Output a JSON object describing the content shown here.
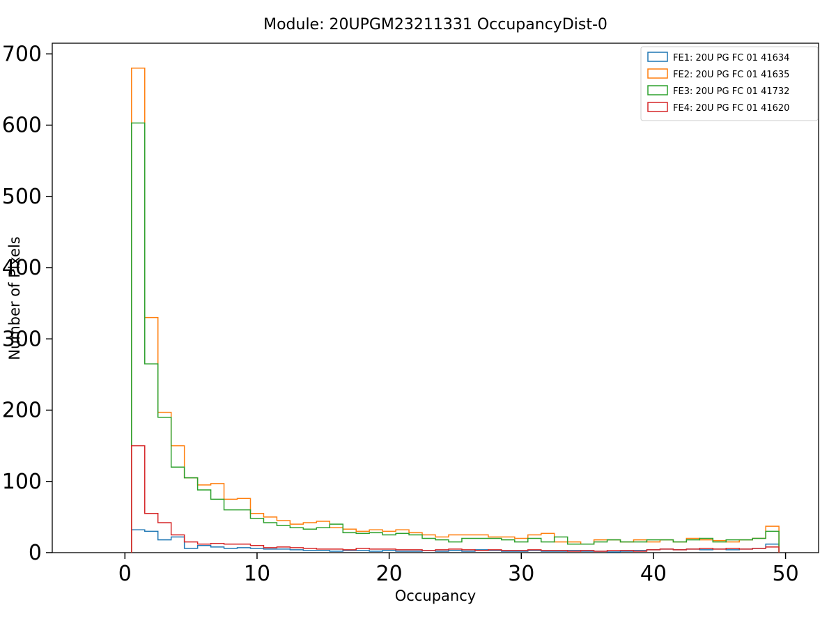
{
  "figure": {
    "title": "Module: 20UPGM23211331 OccupancyDist-0",
    "xlabel": "Occupancy",
    "ylabel": "Number of Pixels"
  },
  "chart_data": {
    "type": "line",
    "subtype": "step-histogram",
    "title": "Module: 20UPGM23211331 OccupancyDist-0",
    "xlabel": "Occupancy",
    "ylabel": "Number of Pixels",
    "xlim": [
      -5.5,
      52.5
    ],
    "ylim": [
      0,
      715
    ],
    "xticks": [
      0,
      10,
      20,
      30,
      40,
      50
    ],
    "yticks": [
      0,
      100,
      200,
      300,
      400,
      500,
      600,
      700
    ],
    "grid": false,
    "legend_position": "upper right",
    "bin_edges": [
      0.5,
      1.5,
      2.5,
      3.5,
      4.5,
      5.5,
      6.5,
      7.5,
      8.5,
      9.5,
      10.5,
      11.5,
      12.5,
      13.5,
      14.5,
      15.5,
      16.5,
      17.5,
      18.5,
      19.5,
      20.5,
      21.5,
      22.5,
      23.5,
      24.5,
      25.5,
      26.5,
      27.5,
      28.5,
      29.5,
      30.5,
      31.5,
      32.5,
      33.5,
      34.5,
      35.5,
      36.5,
      37.5,
      38.5,
      39.5,
      40.5,
      41.5,
      42.5,
      43.5,
      44.5,
      45.5,
      46.5,
      47.5,
      48.5,
      49.5
    ],
    "series": [
      {
        "name": "FE1: 20U PG FC 01 41634",
        "color": "#1f77b4",
        "values": [
          32,
          30,
          18,
          22,
          6,
          10,
          8,
          6,
          7,
          6,
          5,
          5,
          4,
          3,
          3,
          2,
          3,
          3,
          2,
          3,
          2,
          2,
          3,
          2,
          3,
          2,
          4,
          3,
          2,
          2,
          3,
          2,
          2,
          3,
          2,
          2,
          1,
          2,
          3,
          4,
          5,
          4,
          5,
          4,
          5,
          4,
          5,
          6,
          12
        ]
      },
      {
        "name": "FE2: 20U PG FC 01 41635",
        "color": "#ff7f0e",
        "values": [
          680,
          330,
          197,
          150,
          105,
          95,
          97,
          75,
          76,
          55,
          50,
          45,
          40,
          42,
          44,
          35,
          33,
          30,
          32,
          30,
          32,
          28,
          25,
          22,
          25,
          25,
          25,
          22,
          22,
          20,
          25,
          27,
          15,
          15,
          12,
          18,
          18,
          15,
          18,
          15,
          18,
          15,
          20,
          18,
          17,
          15,
          18,
          20,
          37
        ]
      },
      {
        "name": "FE3: 20U PG FC 01 41732",
        "color": "#2ca02c",
        "values": [
          603,
          265,
          190,
          120,
          105,
          88,
          75,
          60,
          60,
          48,
          42,
          38,
          35,
          33,
          35,
          40,
          28,
          27,
          28,
          25,
          27,
          25,
          20,
          18,
          15,
          20,
          20,
          20,
          18,
          15,
          20,
          15,
          22,
          12,
          12,
          15,
          18,
          15,
          15,
          18,
          18,
          15,
          18,
          20,
          15,
          18,
          18,
          20,
          30
        ]
      },
      {
        "name": "FE4: 20U PG FC 01 41620",
        "color": "#d62728",
        "values": [
          150,
          55,
          42,
          25,
          15,
          12,
          13,
          12,
          12,
          10,
          7,
          8,
          7,
          6,
          5,
          5,
          4,
          6,
          5,
          5,
          4,
          4,
          3,
          4,
          5,
          4,
          3,
          4,
          3,
          3,
          4,
          3,
          3,
          2,
          3,
          2,
          3,
          3,
          2,
          4,
          5,
          4,
          5,
          6,
          5,
          6,
          5,
          6,
          8
        ]
      }
    ]
  }
}
